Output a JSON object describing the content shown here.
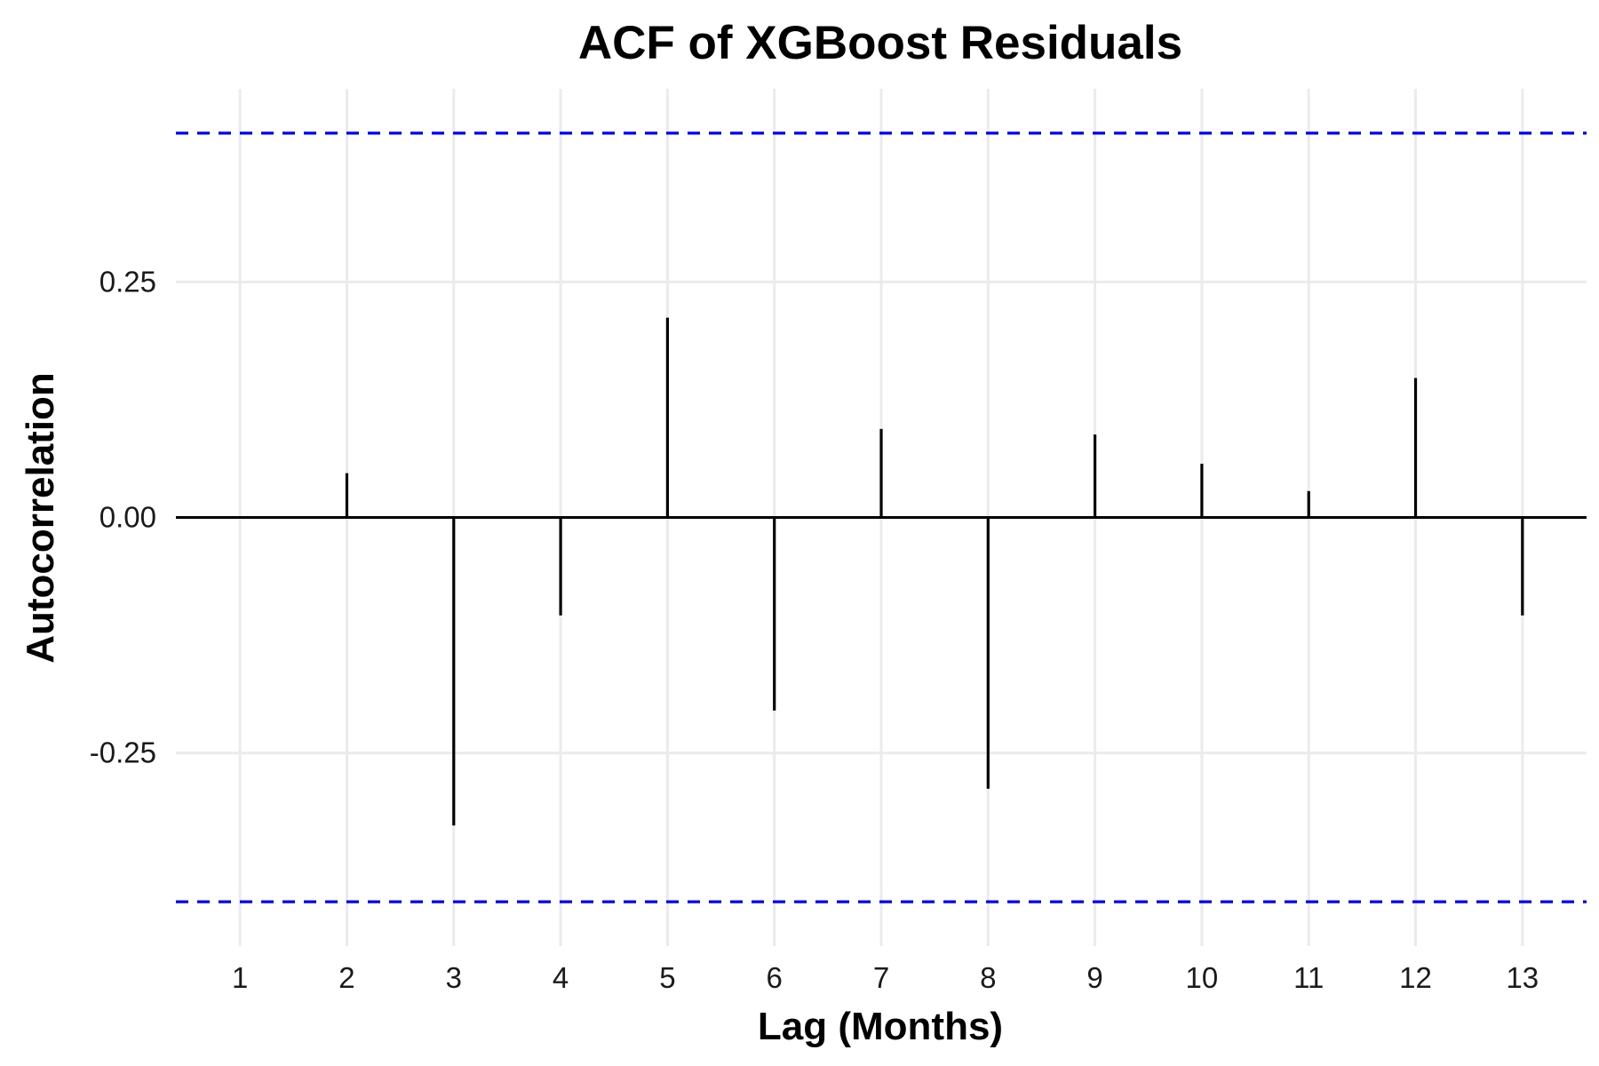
{
  "chart_data": {
    "type": "bar",
    "title": "ACF of XGBoost Residuals",
    "xlabel": "Lag (Months)",
    "ylabel": "Autocorrelation",
    "x": [
      1,
      2,
      3,
      4,
      5,
      6,
      7,
      8,
      9,
      10,
      11,
      12,
      13
    ],
    "x_tick_labels": [
      "1",
      "2",
      "3",
      "4",
      "5",
      "6",
      "7",
      "8",
      "9",
      "10",
      "11",
      "12",
      "13"
    ],
    "values": [
      0.0,
      0.047,
      -0.327,
      -0.104,
      0.212,
      -0.205,
      0.094,
      -0.288,
      0.088,
      0.057,
      0.028,
      0.148,
      -0.104
    ],
    "y_ticks": [
      -0.25,
      0.0,
      0.25
    ],
    "y_tick_labels": [
      "-0.25",
      "0.00",
      "0.25"
    ],
    "xlim": [
      0.4,
      13.6
    ],
    "ylim": [
      -0.455,
      0.455
    ],
    "confidence_bound": 0.408,
    "grid": true,
    "legend": "none",
    "colors": {
      "bars": "#000000",
      "confidence_lines": "#0000ff",
      "grid": "#ebebeb",
      "zero_line": "#000000"
    }
  }
}
